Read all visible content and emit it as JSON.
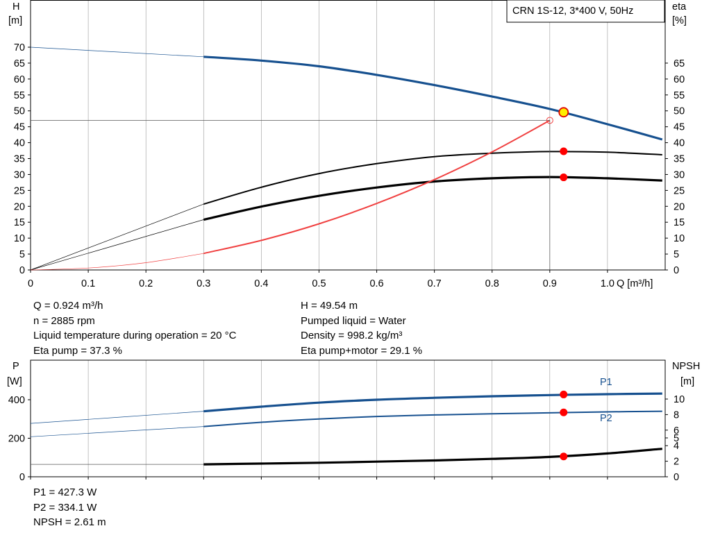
{
  "title_box": "CRN 1S-12, 3*400 V, 50Hz",
  "colors": {
    "blue": "#16508f",
    "black": "#000000",
    "red_curve": "#f04040",
    "red_point": "#ff0000",
    "yellow_point": "#ffee00",
    "grid": "#999999"
  },
  "chart_data": [
    {
      "type": "line",
      "y_axis_left": {
        "label": [
          "H",
          "[m]"
        ],
        "ylim": [
          0,
          70
        ],
        "ticks": [
          "0",
          "5",
          "10",
          "15",
          "20",
          "25",
          "30",
          "35",
          "40",
          "45",
          "50",
          "55",
          "60",
          "65",
          "70"
        ]
      },
      "y_axis_right": {
        "label": [
          "eta",
          "[%]"
        ],
        "ylim": [
          0,
          70
        ],
        "ticks": [
          "0",
          "5",
          "10",
          "15",
          "20",
          "25",
          "30",
          "35",
          "40",
          "45",
          "50",
          "55",
          "60",
          "65"
        ]
      },
      "x_axis": {
        "label": "Q [m³/h]",
        "xlim": [
          0,
          1.1
        ],
        "ticks": [
          "0",
          "0.1",
          "0.2",
          "0.3",
          "0.4",
          "0.5",
          "0.6",
          "0.7",
          "0.8",
          "0.9",
          "1.0"
        ]
      },
      "grid": true,
      "series": [
        {
          "color": "blue",
          "thick": true,
          "x": [
            0,
            0.3,
            0.4,
            0.5,
            0.6,
            0.7,
            0.8,
            0.9,
            1.0,
            1.095
          ],
          "y": [
            70,
            67,
            65.8,
            64,
            61.3,
            58.1,
            54.5,
            50.6,
            45.8,
            41
          ]
        },
        {
          "color": "black",
          "thick": false,
          "x": [
            0,
            0.3,
            0.4,
            0.5,
            0.6,
            0.7,
            0.8,
            0.9,
            1.0,
            1.095
          ],
          "y": [
            0,
            20.7,
            26,
            30.3,
            33.4,
            35.6,
            36.7,
            37.2,
            37.0,
            36.2
          ]
        },
        {
          "color": "black",
          "thick": true,
          "x": [
            0,
            0.3,
            0.4,
            0.5,
            0.6,
            0.7,
            0.8,
            0.9,
            1.0,
            1.095
          ],
          "y": [
            0,
            15.8,
            19.9,
            23.3,
            25.9,
            27.8,
            28.8,
            29.2,
            28.8,
            28.1
          ]
        },
        {
          "color": "red_curve",
          "thick": false,
          "x": [
            0,
            0.1,
            0.2,
            0.3,
            0.4,
            0.5,
            0.6,
            0.7,
            0.8,
            0.9
          ],
          "y": [
            0,
            0.6,
            2.3,
            5.2,
            9.3,
            14.5,
            20.9,
            28.4,
            37.1,
            47
          ]
        }
      ],
      "operating_point": {
        "x": 0.924,
        "H": 49.54,
        "eta_pump": 37.3,
        "eta_total": 29.1
      },
      "reference": {
        "x": 0.9,
        "y": 47
      }
    },
    {
      "type": "line",
      "y_axis_left": {
        "label": [
          "P",
          "[W]"
        ],
        "ylim": [
          0,
          440
        ],
        "ticks": [
          "0",
          "200",
          "400"
        ]
      },
      "y_axis_right": {
        "label": [
          "NPSH",
          "[m]"
        ],
        "ylim": [
          0,
          11
        ],
        "ticks": [
          "0",
          "2",
          "4",
          "5",
          "6",
          "8",
          "10"
        ]
      },
      "xlim": [
        0,
        1.1
      ],
      "grid": true,
      "series": [
        {
          "name": "P1",
          "color": "blue",
          "thick": true,
          "x": [
            0,
            0.3,
            0.4,
            0.5,
            0.6,
            0.7,
            0.8,
            0.9,
            1.0,
            1.095
          ],
          "y": [
            277,
            340,
            364,
            385,
            400,
            410,
            418,
            424,
            429,
            432
          ]
        },
        {
          "name": "P2",
          "color": "blue",
          "thick": false,
          "x": [
            0,
            0.3,
            0.4,
            0.5,
            0.6,
            0.7,
            0.8,
            0.9,
            1.0,
            1.095
          ],
          "y": [
            208,
            261,
            283,
            300,
            313,
            321,
            327,
            332,
            337,
            340
          ]
        },
        {
          "color": "black",
          "thick": true,
          "axis": "right",
          "x": [
            0,
            0.3,
            0.4,
            0.5,
            0.6,
            0.7,
            0.8,
            0.9,
            1.0,
            1.095
          ],
          "y": [
            1.6,
            1.6,
            1.7,
            1.8,
            1.95,
            2.1,
            2.3,
            2.55,
            3.0,
            3.6
          ]
        }
      ],
      "operating_point": {
        "x": 0.924,
        "P1": 427.3,
        "P2": 334.1,
        "NPSH": 2.61
      }
    }
  ],
  "info_top_left": [
    "Q = 0.924 m³/h",
    "n = 2885 rpm",
    "Liquid temperature during operation = 20 °C",
    "Eta pump = 37.3 %"
  ],
  "info_top_right": [
    "H = 49.54 m",
    "Pumped liquid = Water",
    "Density = 998.2 kg/m³",
    "Eta pump+motor = 29.1 %"
  ],
  "info_bottom": [
    "P1 = 427.3 W",
    "P2 = 334.1 W",
    "NPSH = 2.61 m"
  ]
}
